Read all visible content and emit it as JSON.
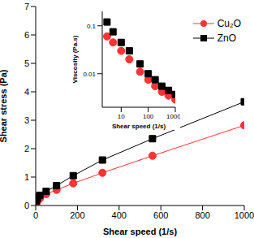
{
  "chart_data": [
    {
      "type": "line",
      "x_label": "Shear speed (1/s)",
      "y_label": "Shear stress (Pa)",
      "x": [
        3,
        5,
        10,
        20,
        50,
        100,
        180,
        320,
        560,
        1000
      ],
      "series": [
        {
          "name": "Cu₂O",
          "color": "#ff3333",
          "marker": "circle",
          "line_style": "solid",
          "values": [
            0.05,
            0.1,
            0.18,
            0.25,
            0.4,
            0.55,
            0.78,
            1.15,
            1.75,
            2.82
          ]
        },
        {
          "name": "ZnO",
          "color": "#000000",
          "marker": "square",
          "line_style": "solid",
          "values": [
            0.15,
            0.22,
            0.3,
            0.36,
            0.5,
            0.7,
            1.05,
            1.6,
            2.35,
            3.65
          ]
        }
      ],
      "xlim": [
        0,
        1000
      ],
      "xticks": [
        0,
        200,
        400,
        600,
        800,
        1000
      ],
      "ylim": [
        0,
        7
      ],
      "yticks": [
        0,
        1,
        2,
        3,
        4,
        5,
        6,
        7
      ],
      "legend": "upper right",
      "grid": false
    },
    {
      "type": "scatter",
      "x_label": "Shear speed (1/s)",
      "y_label": "Viscosity (Pa.s)",
      "x": [
        3,
        5,
        10,
        20,
        50,
        100,
        180,
        320,
        560,
        1000
      ],
      "series": [
        {
          "name": "Cu₂O",
          "color": "#ff3333",
          "marker": "circle",
          "values": [
            0.06,
            0.045,
            0.03,
            0.02,
            0.011,
            0.0075,
            0.0055,
            0.0042,
            0.0035,
            0.0029
          ]
        },
        {
          "name": "ZnO",
          "color": "#000000",
          "marker": "square",
          "values": [
            0.12,
            0.075,
            0.045,
            0.03,
            0.016,
            0.01,
            0.0075,
            0.0055,
            0.0045,
            0.0037
          ]
        }
      ],
      "log": true,
      "xlim": [
        2,
        1000
      ],
      "xticks": [
        10,
        100,
        1000
      ],
      "ylim": [
        0.002,
        0.2
      ],
      "yticks": [
        0.01,
        0.1
      ],
      "grid": false
    }
  ]
}
